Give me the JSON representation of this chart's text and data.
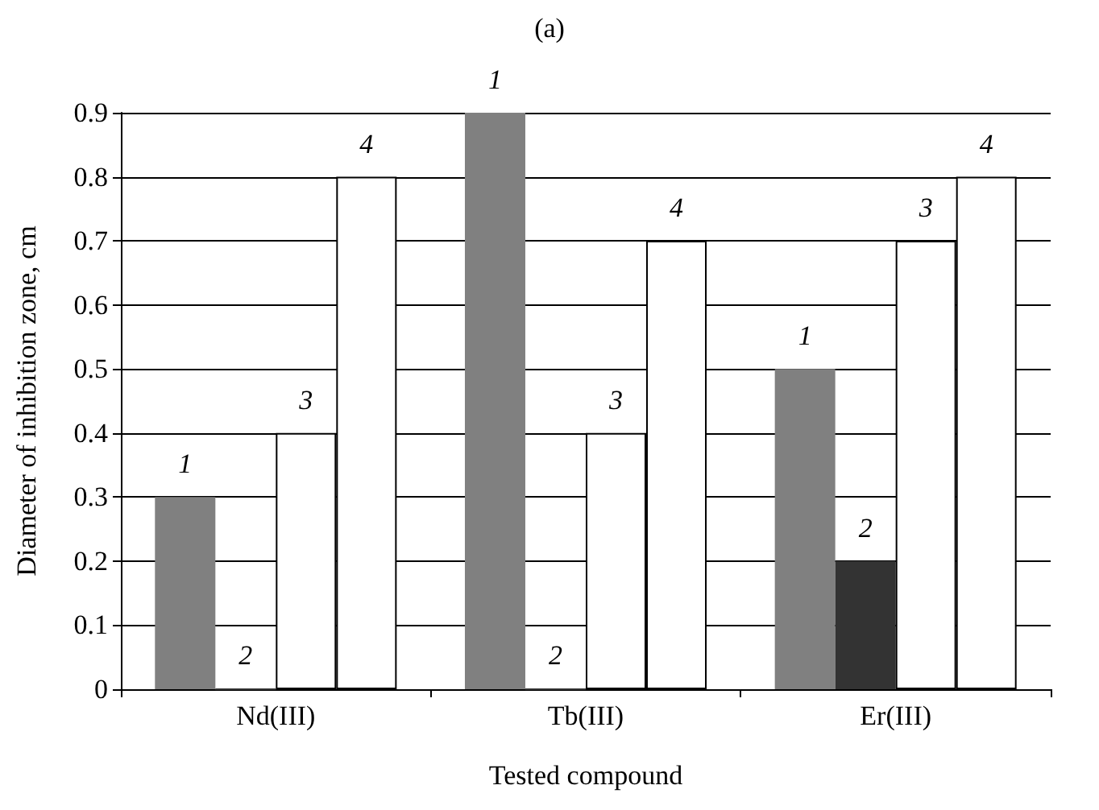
{
  "chart_data": {
    "type": "bar",
    "title": "(a)",
    "xlabel": "Tested compound",
    "ylabel": "Diameter of inhibition zone, cm",
    "categories": [
      "Nd(III)",
      "Tb(III)",
      "Er(III)"
    ],
    "series": [
      {
        "name": "1",
        "color": "#808080",
        "values": [
          0.3,
          0.9,
          0.5
        ]
      },
      {
        "name": "2",
        "color": "#333333",
        "values": [
          0,
          0,
          0.2
        ]
      },
      {
        "name": "3",
        "color": "#ffffff",
        "values": [
          0.4,
          0.4,
          0.7
        ]
      },
      {
        "name": "4",
        "color": "#ffffff",
        "values": [
          0.8,
          0.7,
          0.8
        ]
      }
    ],
    "ylim": [
      0,
      0.9
    ],
    "yticks": [
      0,
      0.1,
      0.2,
      0.3,
      0.4,
      0.5,
      0.6,
      0.7,
      0.8,
      0.9
    ],
    "grid": "y",
    "legend": false
  }
}
